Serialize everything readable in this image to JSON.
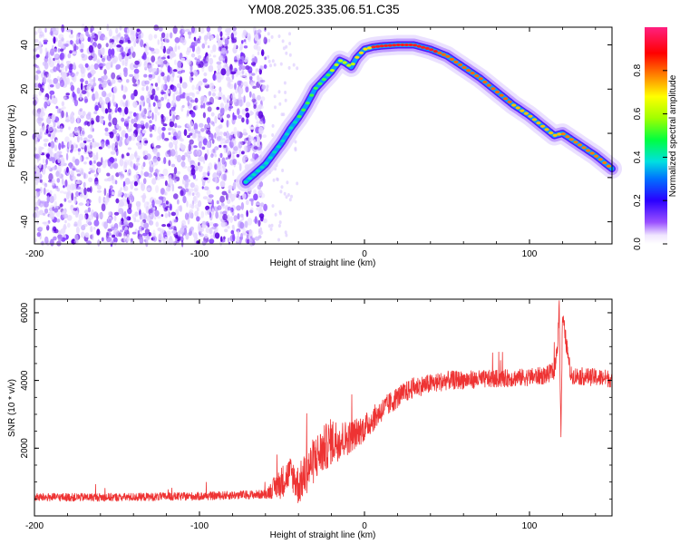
{
  "title": "YM08.2025.335.06.51.C35",
  "chart_data": [
    {
      "type": "heatmap",
      "title": "YM08.2025.335.06.51.C35",
      "xlabel": "Height of straight line (km)",
      "ylabel": "Frequency (Hz)",
      "xlim": [
        -200,
        150
      ],
      "ylim": [
        -50,
        48
      ],
      "x_ticks": [
        -200,
        -100,
        0,
        100
      ],
      "x_tick_labels": [
        "-200",
        "-100",
        "0",
        "100"
      ],
      "y_ticks": [
        -40,
        -20,
        0,
        20,
        40
      ],
      "y_tick_labels": [
        "-40",
        "-20",
        "0",
        "20",
        "40"
      ],
      "colorbar": {
        "label": "Normalized spectral amplitude",
        "range": [
          0,
          1
        ],
        "ticks": [
          0.0,
          0.2,
          0.4,
          0.6,
          0.8
        ],
        "tick_labels": [
          "0.0",
          "0.2",
          "0.4",
          "0.6",
          "0.8"
        ],
        "colormap": "rainbow (purple-blue-cyan-green-yellow-red-magenta)"
      },
      "ridge": {
        "x": [
          -72,
          -60,
          -50,
          -45,
          -40,
          -35,
          -30,
          -25,
          -20,
          -15,
          -12,
          -8,
          -5,
          0,
          5,
          10,
          20,
          30,
          40,
          50,
          60,
          70,
          80,
          90,
          100,
          110,
          115,
          120,
          130,
          140,
          150
        ],
        "y": [
          -22,
          -14,
          -4,
          2,
          7,
          13,
          20,
          24,
          28,
          33,
          32,
          30,
          34,
          38,
          39,
          39.5,
          40,
          40,
          38,
          35,
          30,
          25,
          19,
          13,
          8,
          2,
          -1,
          0,
          -5,
          -10,
          -16
        ]
      },
      "noise_region_x": [
        -200,
        -60
      ]
    },
    {
      "type": "line",
      "xlabel": "Height of straight line (km)",
      "ylabel": "SNR (10 * v/v)",
      "xlim": [
        -200,
        150
      ],
      "ylim": [
        0,
        6400
      ],
      "x_ticks": [
        -200,
        -100,
        0,
        100
      ],
      "x_tick_labels": [
        "-200",
        "-100",
        "0",
        "100"
      ],
      "y_ticks": [
        2000,
        4000,
        6000
      ],
      "y_tick_labels": [
        "2000",
        "4000",
        "6000"
      ],
      "series": [
        {
          "color": "#ee3333",
          "envelope_x": [
            -200,
            -150,
            -100,
            -60,
            -50,
            -45,
            -40,
            -30,
            -20,
            -10,
            0,
            10,
            20,
            30,
            50,
            80,
            100,
            110,
            115,
            117,
            118,
            119,
            120,
            125,
            150
          ],
          "envelope_y": [
            550,
            550,
            580,
            640,
            1000,
            1300,
            900,
            1700,
            2200,
            2300,
            2600,
            3100,
            3500,
            3800,
            4000,
            4050,
            4100,
            4150,
            4300,
            5000,
            6400,
            2100,
            5900,
            4150,
            4050
          ],
          "noise_amplitude": [
            120,
            120,
            120,
            130,
            500,
            450,
            600,
            700,
            700,
            500,
            400,
            350,
            320,
            300,
            280,
            260,
            260,
            260,
            260,
            260,
            260,
            260,
            260,
            260,
            260
          ]
        }
      ]
    }
  ]
}
